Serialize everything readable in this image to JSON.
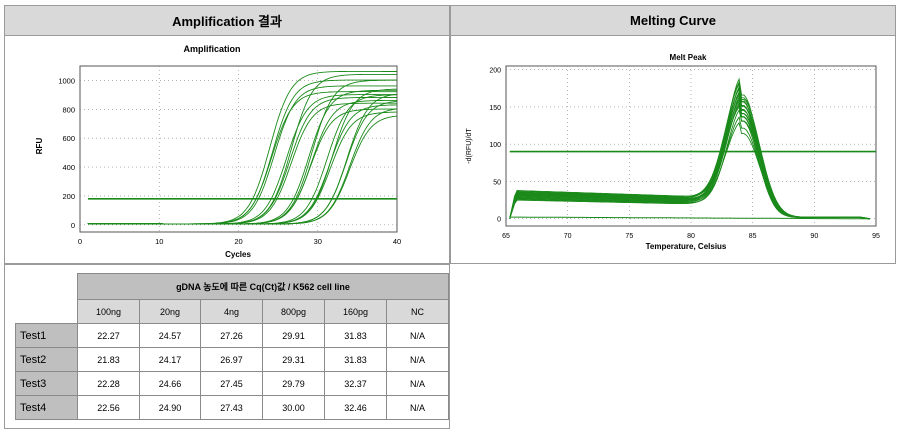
{
  "panels": {
    "amplification_header": "Amplification 결과",
    "melting_header": "Melting Curve"
  },
  "chart_data": [
    {
      "type": "line",
      "title": "Amplification",
      "xlabel": "Cycles",
      "ylabel": "RFU",
      "xlim": [
        0,
        40
      ],
      "ylim": [
        -50,
        1100
      ],
      "xticks": [
        0,
        10,
        20,
        30,
        40
      ],
      "yticks": [
        0,
        200,
        400,
        600,
        800,
        1000
      ],
      "grid": "dotted",
      "threshold": 180,
      "color": "#1a8a1a",
      "series": [
        {
          "ct": 22.27,
          "plateau": 1000
        },
        {
          "ct": 21.83,
          "plateau": 1060
        },
        {
          "ct": 22.28,
          "plateau": 920
        },
        {
          "ct": 22.56,
          "plateau": 960
        },
        {
          "ct": 24.57,
          "plateau": 1040
        },
        {
          "ct": 24.17,
          "plateau": 900
        },
        {
          "ct": 24.66,
          "plateau": 880
        },
        {
          "ct": 24.9,
          "plateau": 840
        },
        {
          "ct": 27.26,
          "plateau": 1000
        },
        {
          "ct": 26.97,
          "plateau": 930
        },
        {
          "ct": 27.45,
          "plateau": 860
        },
        {
          "ct": 27.43,
          "plateau": 800
        },
        {
          "ct": 29.91,
          "plateau": 940
        },
        {
          "ct": 29.31,
          "plateau": 900
        },
        {
          "ct": 29.79,
          "plateau": 830
        },
        {
          "ct": 30.0,
          "plateau": 780
        },
        {
          "ct": 31.83,
          "plateau": 910
        },
        {
          "ct": 31.83,
          "plateau": 860
        },
        {
          "ct": 32.37,
          "plateau": 810
        },
        {
          "ct": 32.46,
          "plateau": 760
        }
      ]
    },
    {
      "type": "line",
      "title": "Melt Peak",
      "xlabel": "Temperature, Celsius",
      "ylabel": "-d(RFU)/dT",
      "xlim": [
        65,
        95
      ],
      "ylim": [
        -10,
        205
      ],
      "xticks": [
        65,
        70,
        75,
        80,
        85,
        90,
        95
      ],
      "yticks": [
        0,
        50,
        100,
        150,
        200
      ],
      "grid": "dotted",
      "threshold": 90,
      "color": "#1a8a1a",
      "peak_temperature": 84.2,
      "series": [
        {
          "peak": 193,
          "base": 38
        },
        {
          "peak": 188,
          "base": 36
        },
        {
          "peak": 185,
          "base": 35
        },
        {
          "peak": 182,
          "base": 34
        },
        {
          "peak": 180,
          "base": 33
        },
        {
          "peak": 178,
          "base": 37
        },
        {
          "peak": 175,
          "base": 32
        },
        {
          "peak": 173,
          "base": 31
        },
        {
          "peak": 170,
          "base": 35
        },
        {
          "peak": 168,
          "base": 30
        },
        {
          "peak": 165,
          "base": 34
        },
        {
          "peak": 162,
          "base": 29
        },
        {
          "peak": 160,
          "base": 33
        },
        {
          "peak": 157,
          "base": 28
        },
        {
          "peak": 154,
          "base": 32
        },
        {
          "peak": 150,
          "base": 27
        },
        {
          "peak": 140,
          "base": 26
        },
        {
          "peak": 132,
          "base": 25
        }
      ]
    }
  ],
  "table": {
    "caption": "gDNA 농도에 따른 Cq(Ct)값 / K562 cell line",
    "columns": [
      "100ng",
      "20ng",
      "4ng",
      "800pg",
      "160pg",
      "NC"
    ],
    "rows": [
      {
        "label": "Test1",
        "values": [
          "22.27",
          "24.57",
          "27.26",
          "29.91",
          "31.83",
          "N/A"
        ]
      },
      {
        "label": "Test2",
        "values": [
          "21.83",
          "24.17",
          "26.97",
          "29.31",
          "31.83",
          "N/A"
        ]
      },
      {
        "label": "Test3",
        "values": [
          "22.28",
          "24.66",
          "27.45",
          "29.79",
          "32.37",
          "N/A"
        ]
      },
      {
        "label": "Test4",
        "values": [
          "22.56",
          "24.90",
          "27.43",
          "30.00",
          "32.46",
          "N/A"
        ]
      }
    ]
  }
}
